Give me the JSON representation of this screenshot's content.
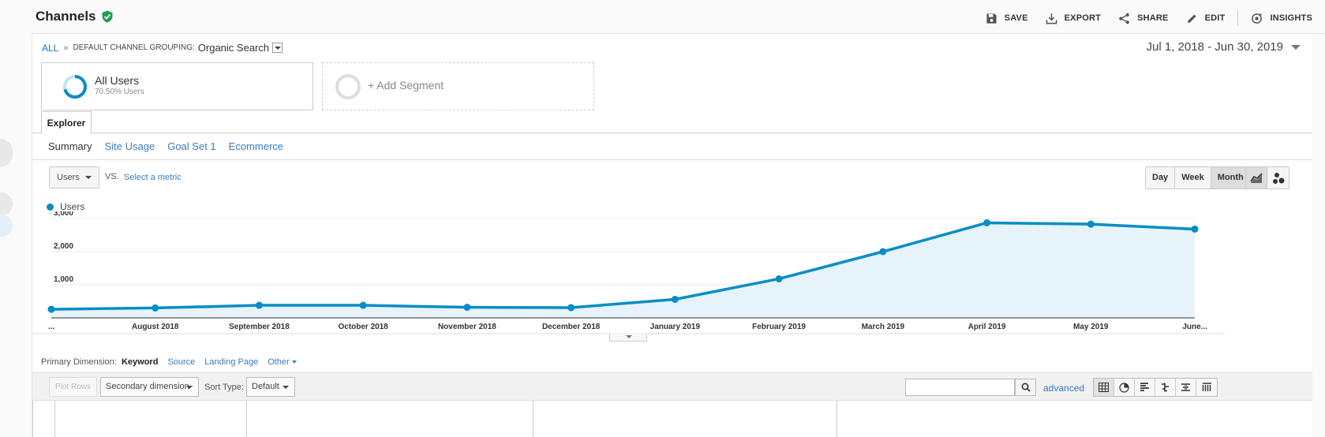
{
  "header": {
    "title": "Channels",
    "actions": {
      "save": "SAVE",
      "export": "EXPORT",
      "share": "SHARE",
      "edit": "EDIT",
      "insights": "INSIGHTS"
    }
  },
  "breadcrumb": {
    "all": "ALL",
    "separator": "»",
    "label": "DEFAULT CHANNEL GROUPING:",
    "value": "Organic Search"
  },
  "date_range": "Jul 1, 2018 - Jun 30, 2019",
  "segments": {
    "active": {
      "name": "All Users",
      "percent_text": "70.50% Users",
      "percent": 70.5
    },
    "add_label": "+ Add Segment"
  },
  "tabs": {
    "explorer": "Explorer",
    "subtabs": [
      "Summary",
      "Site Usage",
      "Goal Set 1",
      "Ecommerce"
    ]
  },
  "chart_controls": {
    "metric": "Users",
    "vs": "VS.",
    "select_metric": "Select a metric",
    "granularity": [
      "Day",
      "Week",
      "Month"
    ],
    "granularity_selected": "Month"
  },
  "colors": {
    "series": "#058dc7",
    "area": "#e6f3fa",
    "link": "#3a7bbf"
  },
  "chart_data": {
    "type": "area",
    "legend": "Users",
    "categories": [
      "...",
      "August 2018",
      "September 2018",
      "October 2018",
      "November 2018",
      "December 2018",
      "January 2019",
      "February 2019",
      "March 2019",
      "April 2019",
      "May 2019",
      "June..."
    ],
    "series": [
      {
        "name": "Users",
        "values": [
          260,
          300,
          380,
          380,
          320,
          310,
          560,
          1180,
          2000,
          2870,
          2830,
          2680
        ]
      }
    ],
    "y_ticks": [
      "1,000",
      "2,000",
      "3,000"
    ],
    "ylim": [
      0,
      3000
    ],
    "grid": true
  },
  "primary_dimension": {
    "label": "Primary Dimension:",
    "options": [
      "Keyword",
      "Source",
      "Landing Page",
      "Other"
    ],
    "selected": "Keyword"
  },
  "table_toolbar": {
    "plot_rows": "Plot Rows",
    "secondary_dimension": "Secondary dimension",
    "sort_label": "Sort Type:",
    "sort_value": "Default",
    "advanced": "advanced"
  }
}
